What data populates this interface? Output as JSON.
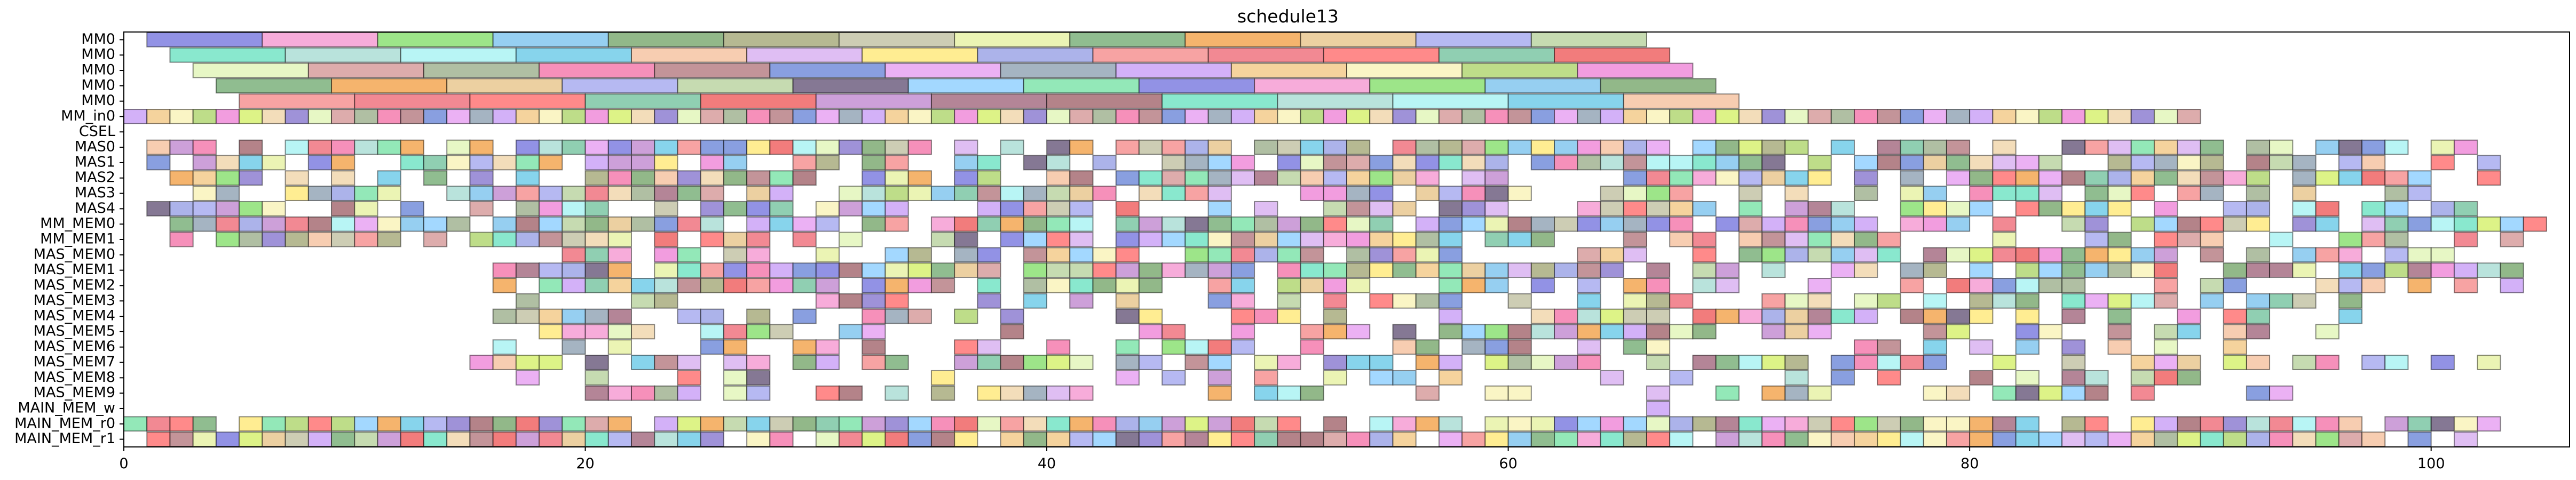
{
  "chart_data": {
    "type": "gantt",
    "title": "schedule13",
    "xlabel": "",
    "ylabel": "",
    "xlim": [
      0,
      106
    ],
    "x_ticks": [
      0,
      20,
      40,
      60,
      80,
      100
    ],
    "x_tick_labels": [
      "0",
      "20",
      "40",
      "60",
      "80",
      "100"
    ],
    "grid": false,
    "legend": "none",
    "rows": [
      "MM0",
      "MM0",
      "MM0",
      "MM0",
      "MM0",
      "MM_in0",
      "CSEL",
      "MAS0",
      "MAS1",
      "MAS2",
      "MAS3",
      "MAS4",
      "MM_MEM0",
      "MM_MEM1",
      "MAS_MEM0",
      "MAS_MEM1",
      "MAS_MEM2",
      "MAS_MEM3",
      "MAS_MEM4",
      "MAS_MEM5",
      "MAS_MEM6",
      "MAS_MEM7",
      "MAS_MEM8",
      "MAS_MEM9",
      "MAIN_MEM_w",
      "MAIN_MEM_r0",
      "MAIN_MEM_r1"
    ],
    "long_tasks": [
      {
        "row": 0,
        "start": 1,
        "duration": 5,
        "count": 13
      },
      {
        "row": 1,
        "start": 2,
        "duration": 5,
        "count": 13
      },
      {
        "row": 2,
        "start": 3,
        "duration": 5,
        "count": 13
      },
      {
        "row": 3,
        "start": 4,
        "duration": 5,
        "count": 13
      },
      {
        "row": 4,
        "start": 5,
        "duration": 5,
        "count": 13
      },
      {
        "row": 5,
        "start": 0,
        "duration": 1,
        "count": 90
      }
    ],
    "unit_tasks": [
      {
        "row": 7,
        "start": 1,
        "end": 103,
        "density": 0.78
      },
      {
        "row": 8,
        "start": 1,
        "end": 104,
        "density": 0.72
      },
      {
        "row": 9,
        "start": 1,
        "end": 104,
        "density": 0.7
      },
      {
        "row": 10,
        "start": 1,
        "end": 100,
        "density": 0.62
      },
      {
        "row": 11,
        "start": 1,
        "end": 106,
        "density": 0.7
      },
      {
        "row": 12,
        "start": 2,
        "end": 106,
        "density": 0.8
      },
      {
        "row": 13,
        "start": 2,
        "end": 104,
        "density": 0.62
      },
      {
        "row": 14,
        "start": 16,
        "end": 103,
        "density": 0.68
      },
      {
        "row": 15,
        "start": 16,
        "end": 104,
        "density": 0.8
      },
      {
        "row": 16,
        "start": 16,
        "end": 104,
        "density": 0.72
      },
      {
        "row": 17,
        "start": 16,
        "end": 99,
        "density": 0.62
      },
      {
        "row": 18,
        "start": 16,
        "end": 98,
        "density": 0.58
      },
      {
        "row": 19,
        "start": 16,
        "end": 96,
        "density": 0.52
      },
      {
        "row": 20,
        "start": 16,
        "end": 95,
        "density": 0.48
      },
      {
        "row": 21,
        "start": 15,
        "end": 103,
        "density": 0.58
      },
      {
        "row": 22,
        "start": 16,
        "end": 91,
        "density": 0.42
      },
      {
        "row": 23,
        "start": 16,
        "end": 97,
        "density": 0.4
      },
      {
        "row": 25,
        "start": 0,
        "end": 104,
        "density": 0.9
      },
      {
        "row": 26,
        "start": 1,
        "end": 102,
        "density": 0.92
      }
    ],
    "single_tasks": [
      {
        "row": 24,
        "start": 66,
        "duration": 1
      }
    ],
    "palette": [
      "#7a7adf",
      "#b0d66f",
      "#a36a80",
      "#f59ad2",
      "#ef88d8",
      "#a3686f",
      "#88df6f",
      "#d5f06c",
      "#6fe3c3",
      "#7fc4ee",
      "#f0d5ab",
      "#a9ddd4",
      "#7aa86f",
      "#8a7acf",
      "#a8f3f3",
      "#a6a97a",
      "#e2f5b8",
      "#6ccbe8",
      "#c2c2a4",
      "#d59a9a",
      "#f5c2a0",
      "#e6f2a4",
      "#9fb18f",
      "#d8b0f0",
      "#77ae77",
      "#f477ab",
      "#ffe97a",
      "#f3a44d",
      "#b67c82",
      "#9aa2e5",
      "#e8c68c",
      "#6f8ad9",
      "#f58f8f",
      "#a6a9ef",
      "#e6a0f2",
      "#ef6f7b",
      "#b9d3a0",
      "#91a3b4",
      "#ff7070",
      "#6a5a7c",
      "#c9a0f7",
      "#78c5a1",
      "#8fcfff",
      "#f3c988",
      "#ef5f5f",
      "#7be3a8",
      "#f9f3b8",
      "#c28bd1"
    ]
  }
}
